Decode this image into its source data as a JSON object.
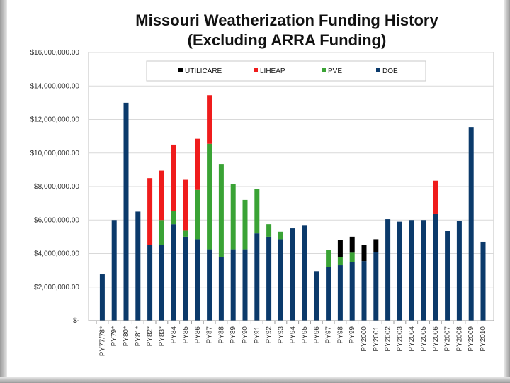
{
  "chart_data": {
    "type": "bar",
    "stacked": true,
    "title": "Missouri Weatherization Funding History",
    "subtitle": "(Excluding ARRA Funding)",
    "xlabel": "",
    "ylabel": "",
    "ylim": [
      0,
      16000000
    ],
    "yticks": [
      0,
      2000000,
      4000000,
      6000000,
      8000000,
      10000000,
      12000000,
      14000000,
      16000000
    ],
    "ytick_labels": [
      "$-",
      "$2,000,000.00",
      "$4,000,000.00",
      "$6,000,000.00",
      "$8,000,000.00",
      "$10,000,000.00",
      "$12,000,000.00",
      "$14,000,000.00",
      "$16,000,000.00"
    ],
    "grid": true,
    "legend_position": "top",
    "categories": [
      "PY77/78*",
      "PY79*",
      "PY80*",
      "PY81*",
      "PY82*",
      "PY83*",
      "PY84",
      "PY85",
      "PY86",
      "PY87",
      "PY88",
      "PY89",
      "PY90",
      "PY91",
      "PY92",
      "PY93",
      "PY94",
      "PY95",
      "PY96",
      "PY97",
      "PY98",
      "PY99",
      "PY2000",
      "PY2001",
      "PY2002",
      "PY2003",
      "PY2004",
      "PY2005",
      "PY2006",
      "PY2007",
      "PY2008",
      "PY2009",
      "PY2010"
    ],
    "series": [
      {
        "name": "DOE",
        "color": "#0b3a6b",
        "values": [
          2750000,
          6000000,
          13000000,
          6500000,
          4500000,
          4500000,
          5750000,
          5000000,
          4850000,
          4250000,
          3800000,
          4250000,
          4250000,
          5200000,
          5000000,
          4850000,
          5500000,
          5700000,
          2950000,
          3200000,
          3300000,
          3500000,
          3550000,
          4100000,
          6050000,
          5900000,
          6000000,
          6000000,
          6350000,
          5350000,
          5950000,
          11550000,
          4700000
        ]
      },
      {
        "name": "PVE",
        "color": "#3aa335",
        "values": [
          0,
          0,
          0,
          0,
          0,
          1500000,
          800000,
          400000,
          2950000,
          6300000,
          5550000,
          3900000,
          2950000,
          2650000,
          750000,
          450000,
          0,
          0,
          0,
          1000000,
          500000,
          550000,
          0,
          0,
          0,
          0,
          0,
          0,
          0,
          0,
          0,
          0,
          0
        ]
      },
      {
        "name": "LIHEAP",
        "color": "#ef1c1c",
        "values": [
          0,
          0,
          0,
          0,
          4000000,
          2950000,
          3950000,
          3000000,
          3050000,
          2900000,
          0,
          0,
          0,
          0,
          0,
          0,
          0,
          0,
          0,
          0,
          0,
          0,
          0,
          0,
          0,
          0,
          0,
          0,
          2000000,
          0,
          0,
          0,
          0
        ]
      },
      {
        "name": "UTILICARE",
        "color": "#000000",
        "values": [
          0,
          0,
          0,
          0,
          0,
          0,
          0,
          0,
          0,
          0,
          0,
          0,
          0,
          0,
          0,
          0,
          0,
          0,
          0,
          0,
          1000000,
          950000,
          950000,
          750000,
          0,
          0,
          0,
          0,
          0,
          0,
          0,
          0,
          0
        ]
      }
    ],
    "legend_order": [
      "UTILICARE",
      "LIHEAP",
      "PVE",
      "DOE"
    ]
  }
}
